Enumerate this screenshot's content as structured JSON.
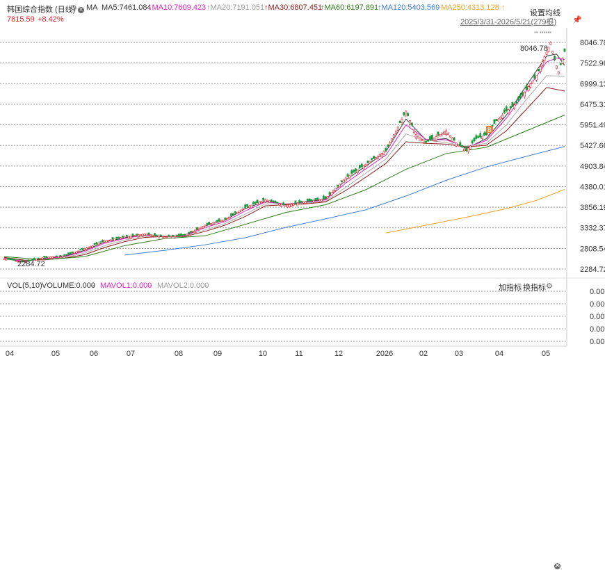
{
  "header": {
    "name": "韩国综合指数 (日线)",
    "ma_label": "MA",
    "ma5": "MA5:7461.084",
    "ma10": "↓MA10:7609.423",
    "ma20": "↑MA20:7191.051",
    "ma30": "↑MA30:6807.451",
    "ma60": "↑MA60:6197.891",
    "ma120": "↑MA120:5403.569",
    "ma250": "MA250:4313.128 ↑",
    "settings": "设置均线",
    "price": "7815.59",
    "change": "+8.42%",
    "range": "2025/3/31-2026/5/21(279根)"
  },
  "volume_legend": {
    "vol": "VOL(5,10)",
    "volume": "VOLUME:0.000",
    "mavol1": "MAVOL1:0.000",
    "mavol2": "MAVOL2:0.000",
    "add_indicator": "加指标",
    "switch_indicator": "换指标"
  },
  "colors": {
    "up": "#e0202a",
    "down": "#1a9a3a",
    "ma5": "#333333",
    "ma10": "#e020c0",
    "ma20": "#aaaaaa",
    "ma30": "#8b1a1a",
    "ma60": "#2e7d1a",
    "ma120": "#3a7bd5",
    "ma250": "#f0a020"
  },
  "chart_data": {
    "type": "line",
    "y_axis": [
      "8046.78",
      "7522.96",
      "6999.13",
      "6475.31",
      "5951.49",
      "5427.66",
      "4903.84",
      "4380.01",
      "3856.19",
      "3332.37",
      "2808.54",
      "2284.72"
    ],
    "ylim": [
      2284.72,
      8046.78
    ],
    "vol_axis": [
      "0.00",
      "0.00",
      "0.00",
      "0.00",
      "0.00"
    ],
    "x_labels": [
      "04",
      "05",
      "06",
      "07",
      "08",
      "09",
      "10",
      "11",
      "12",
      "2026",
      "02",
      "03",
      "04",
      "05"
    ],
    "annotations": {
      "high": "8046.78",
      "low": "2284.72"
    },
    "series": [
      {
        "name": "MA5",
        "color_key": "ma5",
        "x": [
          0,
          10,
          20,
          30,
          40,
          50,
          60,
          70,
          80,
          90,
          100,
          110,
          120,
          130,
          140,
          150,
          160,
          170,
          180,
          190,
          200,
          210,
          220,
          230,
          240,
          250,
          260,
          270,
          275,
          279
        ],
        "values": [
          2550,
          2470,
          2560,
          2610,
          2760,
          2970,
          3080,
          3160,
          3110,
          3140,
          3380,
          3530,
          3820,
          4010,
          3930,
          3990,
          4060,
          4550,
          4900,
          5270,
          6100,
          5560,
          5600,
          5350,
          5600,
          6200,
          6950,
          7700,
          7750,
          7460
        ]
      },
      {
        "name": "MA10",
        "color_key": "ma10",
        "x": [
          0,
          10,
          20,
          30,
          40,
          50,
          60,
          70,
          80,
          90,
          100,
          110,
          120,
          130,
          140,
          150,
          160,
          170,
          180,
          190,
          200,
          210,
          220,
          230,
          240,
          250,
          260,
          270,
          275,
          279
        ],
        "values": [
          2560,
          2480,
          2540,
          2600,
          2730,
          2940,
          3060,
          3150,
          3120,
          3130,
          3340,
          3490,
          3760,
          3990,
          3940,
          3980,
          4040,
          4470,
          4830,
          5180,
          5950,
          5580,
          5570,
          5380,
          5550,
          6120,
          6820,
          7550,
          7650,
          7610
        ]
      },
      {
        "name": "MA20",
        "color_key": "ma20",
        "x": [
          0,
          10,
          20,
          30,
          40,
          50,
          60,
          70,
          80,
          90,
          100,
          110,
          120,
          130,
          140,
          150,
          160,
          170,
          180,
          190,
          200,
          210,
          220,
          230,
          240,
          250,
          260,
          270,
          279
        ],
        "values": [
          2570,
          2500,
          2530,
          2580,
          2690,
          2880,
          3020,
          3120,
          3120,
          3120,
          3280,
          3440,
          3680,
          3940,
          3940,
          3960,
          4010,
          4360,
          4720,
          5080,
          5720,
          5560,
          5500,
          5400,
          5480,
          5950,
          6600,
          7200,
          7190
        ]
      },
      {
        "name": "MA30",
        "color_key": "ma30",
        "x": [
          0,
          10,
          20,
          30,
          40,
          50,
          60,
          70,
          80,
          90,
          100,
          110,
          120,
          130,
          140,
          150,
          160,
          170,
          180,
          190,
          200,
          210,
          220,
          230,
          240,
          250,
          260,
          270,
          279
        ],
        "values": [
          2580,
          2510,
          2520,
          2560,
          2650,
          2830,
          2980,
          3090,
          3110,
          3110,
          3240,
          3400,
          3620,
          3890,
          3920,
          3940,
          3990,
          4280,
          4620,
          4970,
          5520,
          5480,
          5460,
          5390,
          5430,
          5800,
          6350,
          6900,
          6810
        ]
      },
      {
        "name": "MA60",
        "color_key": "ma60",
        "x": [
          0,
          20,
          40,
          60,
          80,
          100,
          120,
          140,
          160,
          180,
          200,
          220,
          240,
          260,
          279
        ],
        "values": [
          2600,
          2520,
          2600,
          2880,
          3060,
          3130,
          3420,
          3720,
          3920,
          4300,
          4820,
          5220,
          5380,
          5800,
          6200
        ]
      },
      {
        "name": "MA120",
        "color_key": "ma120",
        "x": [
          60,
          80,
          100,
          120,
          140,
          160,
          180,
          200,
          220,
          240,
          260,
          279
        ],
        "values": [
          2640,
          2760,
          2900,
          3080,
          3340,
          3560,
          3790,
          4140,
          4540,
          4880,
          5150,
          5400
        ]
      },
      {
        "name": "MA250",
        "color_key": "ma250",
        "x": [
          190,
          210,
          230,
          250,
          265,
          279
        ],
        "values": [
          3200,
          3400,
          3600,
          3820,
          4030,
          4310
        ]
      },
      {
        "name": "Price",
        "color_key": "up",
        "x": [
          0,
          10,
          20,
          30,
          40,
          50,
          60,
          70,
          80,
          90,
          100,
          110,
          120,
          130,
          140,
          150,
          160,
          170,
          180,
          190,
          195,
          200,
          205,
          210,
          215,
          220,
          225,
          230,
          235,
          240,
          245,
          250,
          255,
          260,
          265,
          270,
          272,
          274,
          276,
          279
        ],
        "values": [
          2550,
          2460,
          2580,
          2620,
          2800,
          3000,
          3100,
          3180,
          3100,
          3150,
          3400,
          3550,
          3850,
          4050,
          3900,
          4000,
          4080,
          4600,
          4950,
          5300,
          5800,
          6300,
          5700,
          5500,
          5650,
          5800,
          5500,
          5300,
          5600,
          5700,
          6050,
          6300,
          6500,
          6850,
          7200,
          7800,
          8046.78,
          7600,
          7300,
          7815.59
        ]
      }
    ]
  }
}
